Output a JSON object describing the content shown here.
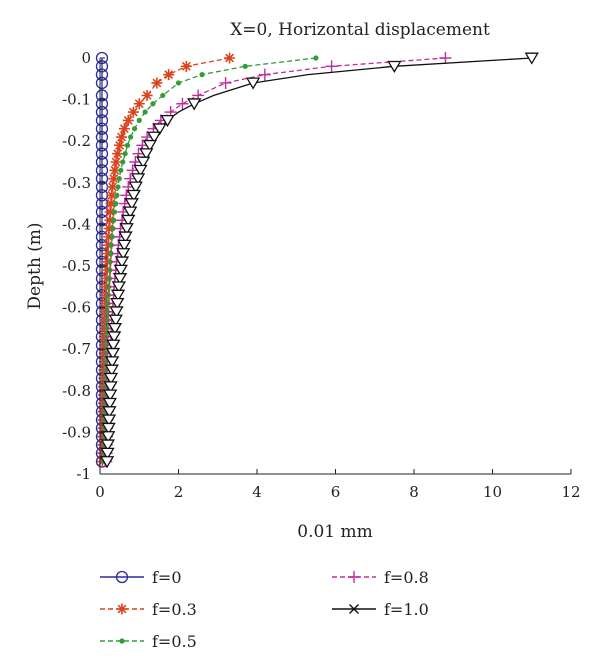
{
  "chart_data": {
    "type": "line",
    "title": "X=0, Horizontal displacement",
    "xlabel": "0.01 mm",
    "ylabel": "Depth (m)",
    "xlim": [
      0,
      12
    ],
    "ylim": [
      -1,
      0
    ],
    "xticks": [
      "0",
      "2",
      "4",
      "6",
      "8",
      "10",
      "12"
    ],
    "yticks": [
      "0",
      "-0.1",
      "-0.2",
      "-0.3",
      "-0.4",
      "-0.5",
      "-0.6",
      "-0.7",
      "-0.8",
      "-0.9",
      "-1"
    ],
    "grid": false,
    "legend_position": "bottom",
    "depth": [
      0,
      -0.02,
      -0.04,
      -0.06,
      -0.09,
      -0.11,
      -0.13,
      -0.15,
      -0.17,
      -0.19,
      -0.21,
      -0.23,
      -0.25,
      -0.27,
      -0.29,
      -0.31,
      -0.33,
      -0.35,
      -0.37,
      -0.39,
      -0.41,
      -0.43,
      -0.45,
      -0.47,
      -0.49,
      -0.51,
      -0.53,
      -0.55,
      -0.57,
      -0.59,
      -0.61,
      -0.63,
      -0.65,
      -0.67,
      -0.69,
      -0.71,
      -0.73,
      -0.75,
      -0.77,
      -0.79,
      -0.81,
      -0.83,
      -0.85,
      -0.87,
      -0.89,
      -0.91,
      -0.93,
      -0.95,
      -0.97
    ],
    "series": [
      {
        "name": "f=0",
        "color": "#2a2a9e",
        "marker": "circle",
        "dash": "solid",
        "values": [
          0.05,
          0.05,
          0.05,
          0.05,
          0.05,
          0.05,
          0.05,
          0.05,
          0.05,
          0.05,
          0.05,
          0.05,
          0.05,
          0.05,
          0.05,
          0.05,
          0.05,
          0.05,
          0.05,
          0.05,
          0.05,
          0.05,
          0.05,
          0.05,
          0.05,
          0.05,
          0.05,
          0.05,
          0.05,
          0.05,
          0.05,
          0.05,
          0.05,
          0.05,
          0.05,
          0.05,
          0.05,
          0.05,
          0.05,
          0.05,
          0.05,
          0.05,
          0.05,
          0.05,
          0.05,
          0.05,
          0.05,
          0.05,
          0.05
        ]
      },
      {
        "name": "f=0.3",
        "color": "#d9441c",
        "marker": "asterisk",
        "dash": "dashed",
        "values": [
          3.3,
          2.2,
          1.75,
          1.45,
          1.2,
          1.0,
          0.85,
          0.72,
          0.62,
          0.55,
          0.5,
          0.45,
          0.41,
          0.38,
          0.35,
          0.32,
          0.3,
          0.28,
          0.26,
          0.25,
          0.23,
          0.22,
          0.21,
          0.2,
          0.19,
          0.18,
          0.17,
          0.16,
          0.15,
          0.15,
          0.14,
          0.13,
          0.13,
          0.12,
          0.12,
          0.11,
          0.11,
          0.1,
          0.1,
          0.09,
          0.09,
          0.09,
          0.08,
          0.08,
          0.08,
          0.07,
          0.07,
          0.07,
          0.06
        ]
      },
      {
        "name": "f=0.5",
        "color": "#2e9e38",
        "marker": "dot",
        "dash": "dashed",
        "values": [
          5.5,
          3.7,
          2.6,
          2.0,
          1.6,
          1.35,
          1.15,
          1.0,
          0.88,
          0.78,
          0.7,
          0.64,
          0.58,
          0.53,
          0.49,
          0.46,
          0.43,
          0.4,
          0.37,
          0.35,
          0.33,
          0.31,
          0.29,
          0.28,
          0.26,
          0.25,
          0.24,
          0.22,
          0.21,
          0.2,
          0.19,
          0.19,
          0.18,
          0.17,
          0.16,
          0.16,
          0.15,
          0.14,
          0.14,
          0.13,
          0.13,
          0.12,
          0.12,
          0.11,
          0.11,
          0.11,
          0.1,
          0.1,
          0.09
        ]
      },
      {
        "name": "f=0.8",
        "color": "#c02d9e",
        "marker": "plus",
        "dash": "dashed",
        "values": [
          8.8,
          5.9,
          4.2,
          3.2,
          2.5,
          2.1,
          1.8,
          1.55,
          1.36,
          1.2,
          1.08,
          0.98,
          0.9,
          0.83,
          0.77,
          0.72,
          0.67,
          0.63,
          0.59,
          0.56,
          0.52,
          0.5,
          0.47,
          0.45,
          0.42,
          0.4,
          0.38,
          0.36,
          0.35,
          0.33,
          0.32,
          0.3,
          0.29,
          0.28,
          0.27,
          0.26,
          0.25,
          0.24,
          0.23,
          0.22,
          0.21,
          0.2,
          0.2,
          0.19,
          0.18,
          0.18,
          0.17,
          0.17,
          0.16
        ]
      },
      {
        "name": "f=1.0",
        "color": "#111111",
        "marker": "triangle-down",
        "legend_marker": "x",
        "dash": "solid",
        "values": [
          11.0,
          7.5,
          5.3,
          3.9,
          2.9,
          2.4,
          2.0,
          1.72,
          1.52,
          1.38,
          1.27,
          1.18,
          1.1,
          1.03,
          0.97,
          0.91,
          0.86,
          0.81,
          0.77,
          0.72,
          0.68,
          0.65,
          0.62,
          0.59,
          0.56,
          0.53,
          0.51,
          0.48,
          0.46,
          0.44,
          0.42,
          0.4,
          0.38,
          0.36,
          0.34,
          0.33,
          0.31,
          0.3,
          0.28,
          0.27,
          0.26,
          0.25,
          0.24,
          0.23,
          0.22,
          0.21,
          0.2,
          0.19,
          0.18
        ]
      }
    ]
  }
}
